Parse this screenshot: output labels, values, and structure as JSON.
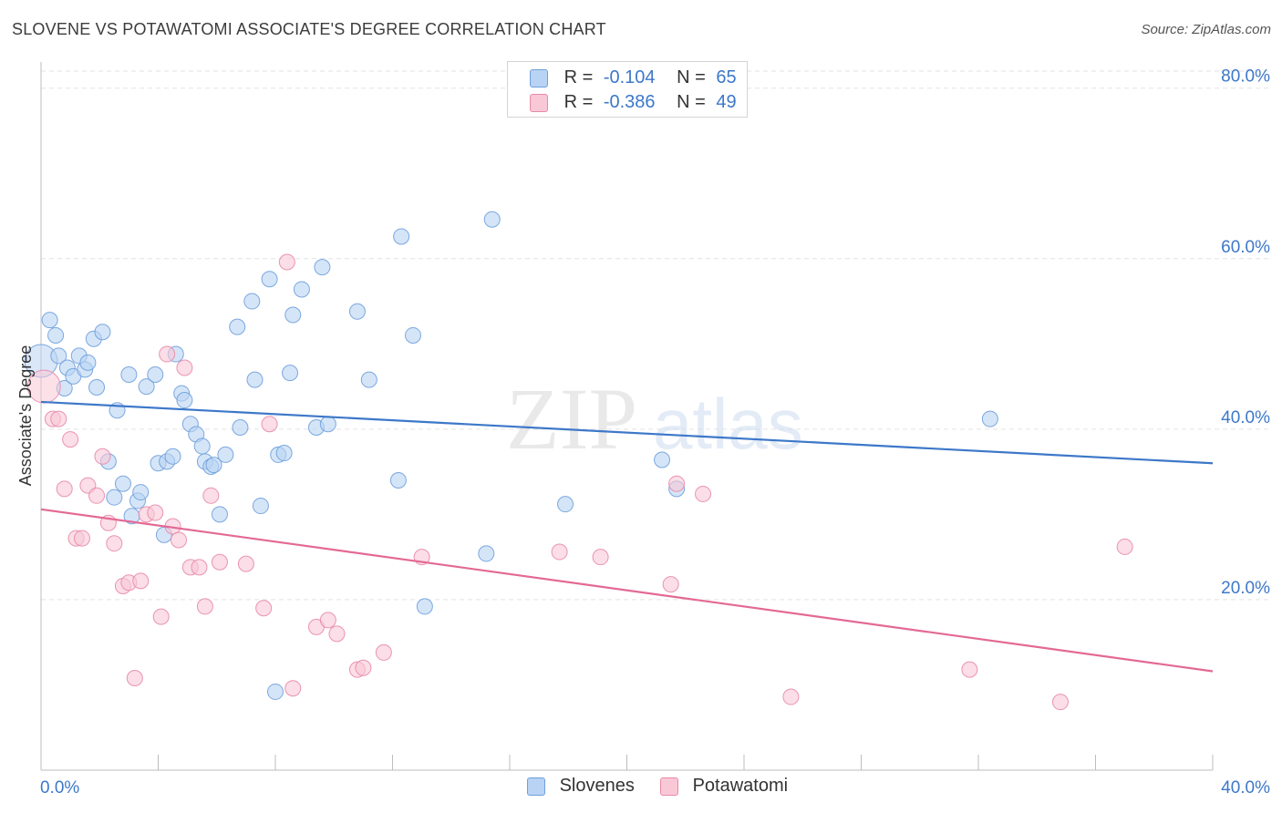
{
  "header": {
    "title": "SLOVENE VS POTAWATOMI ASSOCIATE'S DEGREE CORRELATION CHART",
    "source": "Source: ZipAtlas.com"
  },
  "legend": {
    "rows": [
      {
        "r_label": "R =",
        "r_value": "-0.104",
        "n_label": "N =",
        "n_value": "65",
        "color": "#b9d3f4",
        "border": "#6fa0dc"
      },
      {
        "r_label": "R =",
        "r_value": "-0.386",
        "n_label": "N =",
        "n_value": "49",
        "color": "#f9c8d7",
        "border": "#e88aa8"
      }
    ]
  },
  "bottom_legend": [
    {
      "label": "Slovenes",
      "color": "#b9d3f4",
      "border": "#6fa0dc"
    },
    {
      "label": "Potawatomi",
      "color": "#f9c8d7",
      "border": "#e88aa8"
    }
  ],
  "watermark": {
    "zip": "ZIP",
    "atlas": "atlas"
  },
  "chart_data": {
    "type": "scatter",
    "title": "SLOVENE VS POTAWATOMI ASSOCIATE'S DEGREE CORRELATION CHART",
    "ylabel": "Associate's Degree",
    "xlabel": "",
    "xlim": [
      0,
      40
    ],
    "ylim": [
      0,
      82
    ],
    "x_tick_labels": [
      "0.0%",
      "40.0%"
    ],
    "y_ticks": [
      20,
      40,
      60,
      80
    ],
    "y_tick_labels": [
      "20.0%",
      "40.0%",
      "60.0%",
      "80.0%"
    ],
    "grid": true,
    "legend_position": "top-center",
    "colors": {
      "slovenes": "#3d78c9",
      "potawatomi": "#e36995"
    },
    "series": [
      {
        "name": "Slovenes",
        "color": "#6fa0dc",
        "fill": "#b9d3f4",
        "trend": {
          "x": [
            0,
            40
          ],
          "y": [
            43.2,
            36.0
          ]
        },
        "points": [
          [
            0.0,
            48.0
          ],
          [
            0.3,
            52.8
          ],
          [
            0.5,
            51.0
          ],
          [
            0.6,
            48.6
          ],
          [
            0.8,
            44.8
          ],
          [
            0.9,
            47.2
          ],
          [
            1.1,
            46.2
          ],
          [
            1.3,
            48.6
          ],
          [
            1.5,
            47.0
          ],
          [
            1.6,
            47.8
          ],
          [
            1.8,
            50.6
          ],
          [
            1.9,
            44.9
          ],
          [
            2.1,
            51.4
          ],
          [
            2.3,
            36.2
          ],
          [
            2.5,
            32.0
          ],
          [
            2.6,
            42.2
          ],
          [
            2.8,
            33.6
          ],
          [
            3.0,
            46.4
          ],
          [
            3.1,
            29.8
          ],
          [
            3.3,
            31.6
          ],
          [
            3.4,
            32.6
          ],
          [
            3.6,
            45.0
          ],
          [
            3.9,
            46.4
          ],
          [
            4.0,
            36.0
          ],
          [
            4.2,
            27.6
          ],
          [
            4.3,
            36.2
          ],
          [
            4.5,
            36.8
          ],
          [
            4.6,
            48.8
          ],
          [
            4.8,
            44.2
          ],
          [
            4.9,
            43.4
          ],
          [
            5.1,
            40.6
          ],
          [
            5.3,
            39.4
          ],
          [
            5.5,
            38.0
          ],
          [
            5.6,
            36.2
          ],
          [
            5.8,
            35.6
          ],
          [
            5.9,
            35.8
          ],
          [
            6.1,
            30.0
          ],
          [
            6.3,
            37.0
          ],
          [
            6.7,
            52.0
          ],
          [
            6.8,
            40.2
          ],
          [
            7.2,
            55.0
          ],
          [
            7.3,
            45.8
          ],
          [
            7.5,
            31.0
          ],
          [
            7.8,
            57.6
          ],
          [
            8.1,
            37.0
          ],
          [
            8.3,
            37.2
          ],
          [
            8.5,
            46.6
          ],
          [
            8.6,
            53.4
          ],
          [
            8.9,
            56.4
          ],
          [
            9.4,
            40.2
          ],
          [
            9.6,
            59.0
          ],
          [
            9.8,
            40.6
          ],
          [
            10.8,
            53.8
          ],
          [
            11.2,
            45.8
          ],
          [
            12.2,
            34.0
          ],
          [
            12.3,
            62.6
          ],
          [
            12.7,
            51.0
          ],
          [
            13.1,
            19.2
          ],
          [
            15.2,
            25.4
          ],
          [
            15.4,
            64.6
          ],
          [
            17.9,
            31.2
          ],
          [
            21.2,
            36.4
          ],
          [
            21.7,
            33.0
          ],
          [
            32.4,
            41.2
          ],
          [
            8.0,
            9.2
          ]
        ]
      },
      {
        "name": "Potawatomi",
        "color": "#e88aa8",
        "fill": "#f9c8d7",
        "trend": {
          "x": [
            0,
            40
          ],
          "y": [
            30.6,
            11.6
          ]
        },
        "points": [
          [
            0.1,
            45.0
          ],
          [
            0.4,
            41.2
          ],
          [
            0.6,
            41.2
          ],
          [
            0.8,
            33.0
          ],
          [
            1.0,
            38.8
          ],
          [
            1.2,
            27.2
          ],
          [
            1.4,
            27.2
          ],
          [
            1.6,
            33.4
          ],
          [
            1.9,
            32.2
          ],
          [
            2.1,
            36.8
          ],
          [
            2.3,
            29.0
          ],
          [
            2.5,
            26.6
          ],
          [
            2.8,
            21.6
          ],
          [
            3.0,
            22.0
          ],
          [
            3.2,
            10.8
          ],
          [
            3.4,
            22.2
          ],
          [
            3.6,
            30.0
          ],
          [
            3.9,
            30.2
          ],
          [
            4.1,
            18.0
          ],
          [
            4.3,
            48.8
          ],
          [
            4.5,
            28.6
          ],
          [
            4.7,
            27.0
          ],
          [
            4.9,
            47.2
          ],
          [
            5.1,
            23.8
          ],
          [
            5.4,
            23.8
          ],
          [
            5.6,
            19.2
          ],
          [
            5.8,
            32.2
          ],
          [
            6.1,
            24.4
          ],
          [
            7.0,
            24.2
          ],
          [
            7.6,
            19.0
          ],
          [
            7.8,
            40.6
          ],
          [
            8.4,
            59.6
          ],
          [
            8.6,
            9.6
          ],
          [
            9.4,
            16.8
          ],
          [
            9.8,
            17.6
          ],
          [
            10.1,
            16.0
          ],
          [
            10.8,
            11.8
          ],
          [
            11.0,
            12.0
          ],
          [
            11.7,
            13.8
          ],
          [
            13.0,
            25.0
          ],
          [
            17.7,
            25.6
          ],
          [
            19.1,
            25.0
          ],
          [
            21.5,
            21.8
          ],
          [
            21.7,
            33.6
          ],
          [
            22.6,
            32.4
          ],
          [
            25.6,
            8.6
          ],
          [
            31.7,
            11.8
          ],
          [
            34.8,
            8.0
          ],
          [
            37.0,
            26.2
          ]
        ]
      }
    ]
  }
}
